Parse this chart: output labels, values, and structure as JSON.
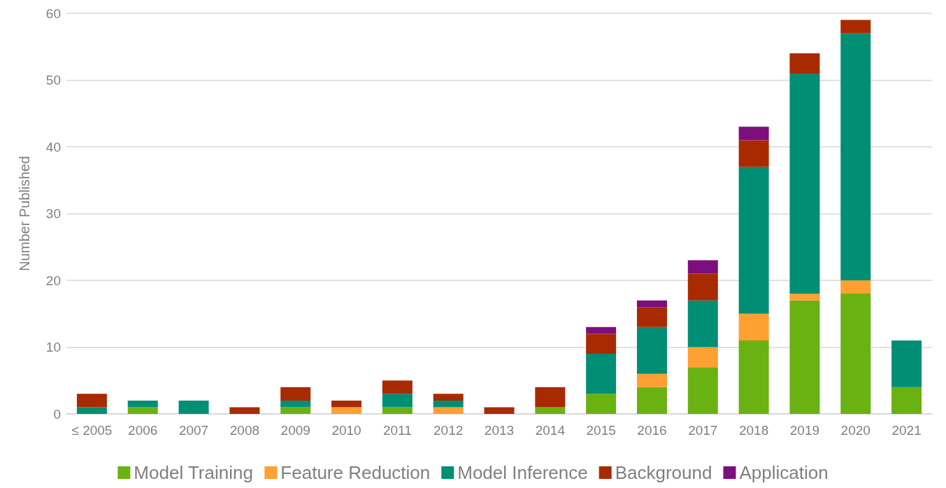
{
  "chart_data": {
    "type": "bar",
    "ylabel": "Number Published",
    "stacked": true,
    "grid": "y",
    "legend": "bottom",
    "categories": [
      "≤ 2005",
      "2006",
      "2007",
      "2008",
      "2009",
      "2010",
      "2011",
      "2012",
      "2013",
      "2014",
      "2015",
      "2016",
      "2017",
      "2018",
      "2019",
      "2020",
      "2021"
    ],
    "ylim": [
      0,
      60
    ],
    "yticks": [
      0,
      10,
      20,
      30,
      40,
      50,
      60
    ],
    "series": [
      {
        "name": "Model Training",
        "color": "#6ab112",
        "values": [
          0,
          1,
          0,
          0,
          1,
          0,
          1,
          0,
          0,
          1,
          3,
          4,
          7,
          11,
          17,
          18,
          4
        ]
      },
      {
        "name": "Feature Reduction",
        "color": "#ffa033",
        "values": [
          0,
          0,
          0,
          0,
          0,
          1,
          0,
          1,
          0,
          0,
          0,
          2,
          3,
          4,
          1,
          2,
          0
        ]
      },
      {
        "name": "Model Inference",
        "color": "#008e74",
        "values": [
          1,
          1,
          2,
          0,
          1,
          0,
          2,
          1,
          0,
          0,
          6,
          7,
          7,
          22,
          33,
          37,
          7
        ]
      },
      {
        "name": "Background",
        "color": "#a82a00",
        "values": [
          2,
          0,
          0,
          1,
          2,
          1,
          2,
          1,
          1,
          3,
          3,
          3,
          4,
          4,
          3,
          2,
          0
        ]
      },
      {
        "name": "Application",
        "color": "#7d0e7d",
        "values": [
          0,
          0,
          0,
          0,
          0,
          0,
          0,
          0,
          0,
          0,
          1,
          1,
          2,
          2,
          0,
          0,
          0
        ]
      }
    ]
  }
}
